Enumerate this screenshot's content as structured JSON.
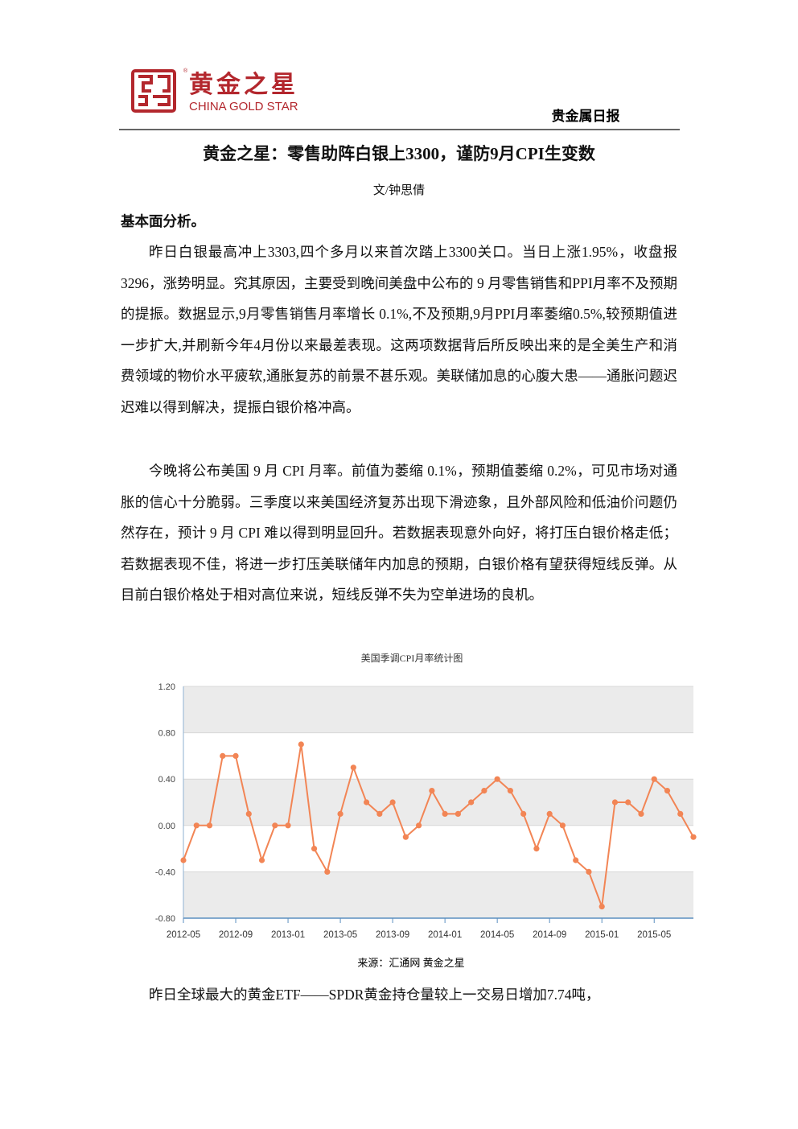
{
  "header": {
    "brand_cn": "黄金之星",
    "brand_en": "CHINA GOLD STAR",
    "registered": "®",
    "report_type": "贵金属日报"
  },
  "article": {
    "title": "黄金之星：零售助阵白银上3300，谨防9月CPI生变数",
    "author": "文/钟思倩",
    "section": "基本面分析。",
    "paragraphs": [
      "昨日白银最高冲上3303,四个多月以来首次踏上3300关口。当日上涨1.95%，收盘报 3296，涨势明显。究其原因，主要受到晚间美盘中公布的 9 月零售销售和PPI月率不及预期的提振。数据显示,9月零售销售月率增长 0.1%,不及预期,9月PPI月率萎缩0.5%,较预期值进一步扩大,并刷新今年4月份以来最差表现。这两项数据背后所反映出来的是全美生产和消费领域的物价水平疲软,通胀复苏的前景不甚乐观。美联储加息的心腹大患——通胀问题迟迟难以得到解决，提振白银价格冲高。",
      "今晚将公布美国 9 月 CPI 月率。前值为萎缩 0.1%，预期值萎缩 0.2%，可见市场对通胀的信心十分脆弱。三季度以来美国经济复苏出现下滑迹象，且外部风险和低油价问题仍然存在，预计 9 月 CPI 难以得到明显回升。若数据表现意外向好，将打压白银价格走低；若数据表现不佳，将进一步打压美联储年内加息的预期，白银价格有望获得短线反弹。从目前白银价格处于相对高位来说，短线反弹不失为空单进场的良机。"
    ],
    "caption": "来源：汇通网 黄金之星",
    "closing": "昨日全球最大的黄金ETF——SPDR黄金持仓量较上一交易日增加7.74吨，"
  },
  "chart_data": {
    "type": "line",
    "title": "美国季调CPI月率统计图",
    "color": "#f28555",
    "grid": true,
    "categories": [
      "2012-05",
      null,
      null,
      null,
      "2012-09",
      null,
      null,
      null,
      "2013-01",
      null,
      null,
      null,
      "2013-05",
      null,
      null,
      null,
      "2013-09",
      null,
      null,
      null,
      "2014-01",
      null,
      null,
      null,
      "2014-05",
      null,
      null,
      null,
      "2014-09",
      null,
      null,
      null,
      "2015-01",
      null,
      null,
      null,
      "2015-05",
      null,
      null,
      null
    ],
    "values": [
      -0.3,
      0,
      0,
      0.6,
      0.6,
      0.1,
      -0.3,
      0,
      0,
      0.7,
      -0.2,
      -0.4,
      0.1,
      0.5,
      0.2,
      0.1,
      0.2,
      -0.1,
      0,
      0.3,
      0.1,
      0.1,
      0.2,
      0.3,
      0.4,
      0.3,
      0.1,
      -0.2,
      0.1,
      0,
      -0.3,
      -0.4,
      -0.7,
      0.2,
      0.2,
      0.1,
      0.4,
      0.3,
      0.1,
      -0.1
    ],
    "ylim": [
      -0.8,
      1.2
    ],
    "yticks": [
      {
        "value": -0.8,
        "label": "-0.80"
      },
      {
        "value": -0.4,
        "label": "-0.40"
      },
      {
        "value": 0,
        "label": "0.00"
      },
      {
        "value": 0.4,
        "label": "0.40"
      },
      {
        "value": 0.8,
        "label": "0.80"
      },
      {
        "value": 1.2,
        "label": "1.20"
      }
    ]
  }
}
